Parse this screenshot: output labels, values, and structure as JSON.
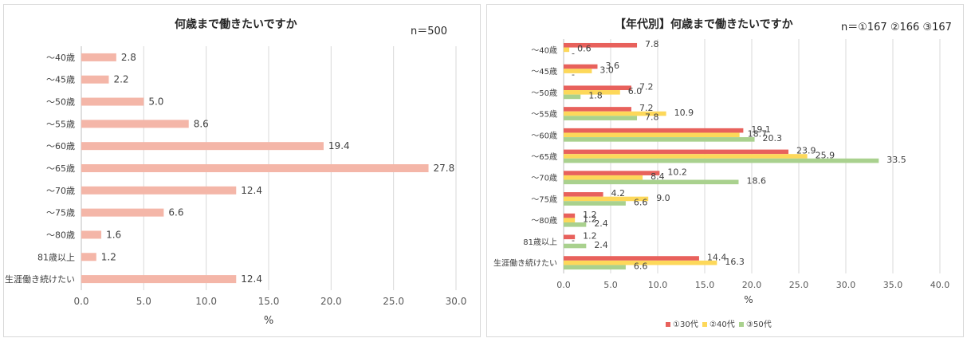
{
  "chart_data": [
    {
      "type": "bar",
      "orientation": "horizontal",
      "title": "何歳まで働きたいですか",
      "note": "n＝500",
      "categories": [
        "～40歳",
        "～45歳",
        "～50歳",
        "～55歳",
        "～60歳",
        "～65歳",
        "～70歳",
        "～75歳",
        "～80歳",
        "81歳以上",
        "生涯働き続けたい"
      ],
      "values": [
        2.8,
        2.2,
        5.0,
        8.6,
        19.4,
        27.8,
        12.4,
        6.6,
        1.6,
        1.2,
        12.4
      ],
      "value_labels": [
        "2.8",
        "2.2",
        "5.0",
        "8.6",
        "19.4",
        "27.8",
        "12.4",
        "6.6",
        "1.6",
        "1.2",
        "12.4"
      ],
      "xlabel": "%",
      "xlim": [
        0,
        30
      ],
      "xticks": [
        "0.0",
        "5.0",
        "10.0",
        "15.0",
        "20.0",
        "25.0",
        "30.0"
      ],
      "grid": true,
      "color": "#f4b6a8"
    },
    {
      "type": "bar",
      "orientation": "horizontal",
      "title": "【年代別】何歳まで働きたいですか",
      "note": "n＝①167 ②166 ③167",
      "categories": [
        "～40歳",
        "～45歳",
        "～50歳",
        "～55歳",
        "～60歳",
        "～65歳",
        "～70歳",
        "～75歳",
        "～80歳",
        "81歳以上",
        "生涯働き続けたい"
      ],
      "series": [
        {
          "name": "①30代",
          "color": "#e8615c",
          "values": [
            7.8,
            3.6,
            7.2,
            7.2,
            19.1,
            23.9,
            10.2,
            4.2,
            1.2,
            1.2,
            14.4
          ],
          "labels": [
            "7.8",
            "3.6",
            "7.2",
            "7.2",
            "19.1",
            "23.9",
            "10.2",
            "4.2",
            "1.2",
            "1.2",
            "14.4"
          ]
        },
        {
          "name": "②40代",
          "color": "#fdd85a",
          "values": [
            0.6,
            3.0,
            6.0,
            10.9,
            18.7,
            25.9,
            8.4,
            9.0,
            1.2,
            0,
            16.3
          ],
          "labels": [
            "0.6",
            "3.0",
            "6.0",
            "10.9",
            "18.7",
            "25.9",
            "8.4",
            "9.0",
            "1.2",
            "-",
            "16.3"
          ]
        },
        {
          "name": "③50代",
          "color": "#a9d18e",
          "values": [
            0,
            0,
            1.8,
            7.8,
            20.3,
            33.5,
            18.6,
            6.6,
            2.4,
            2.4,
            6.6
          ],
          "labels": [
            "-",
            "-",
            "1.8",
            "7.8",
            "20.3",
            "33.5",
            "18.6",
            "6.6",
            "2.4",
            "2.4",
            "6.6"
          ]
        }
      ],
      "xlabel": "%",
      "xlim": [
        0,
        40
      ],
      "xticks": [
        "0.0",
        "5.0",
        "10.0",
        "15.0",
        "20.0",
        "25.0",
        "30.0",
        "35.0",
        "40.0"
      ],
      "grid": true,
      "legend": "bottom"
    }
  ]
}
